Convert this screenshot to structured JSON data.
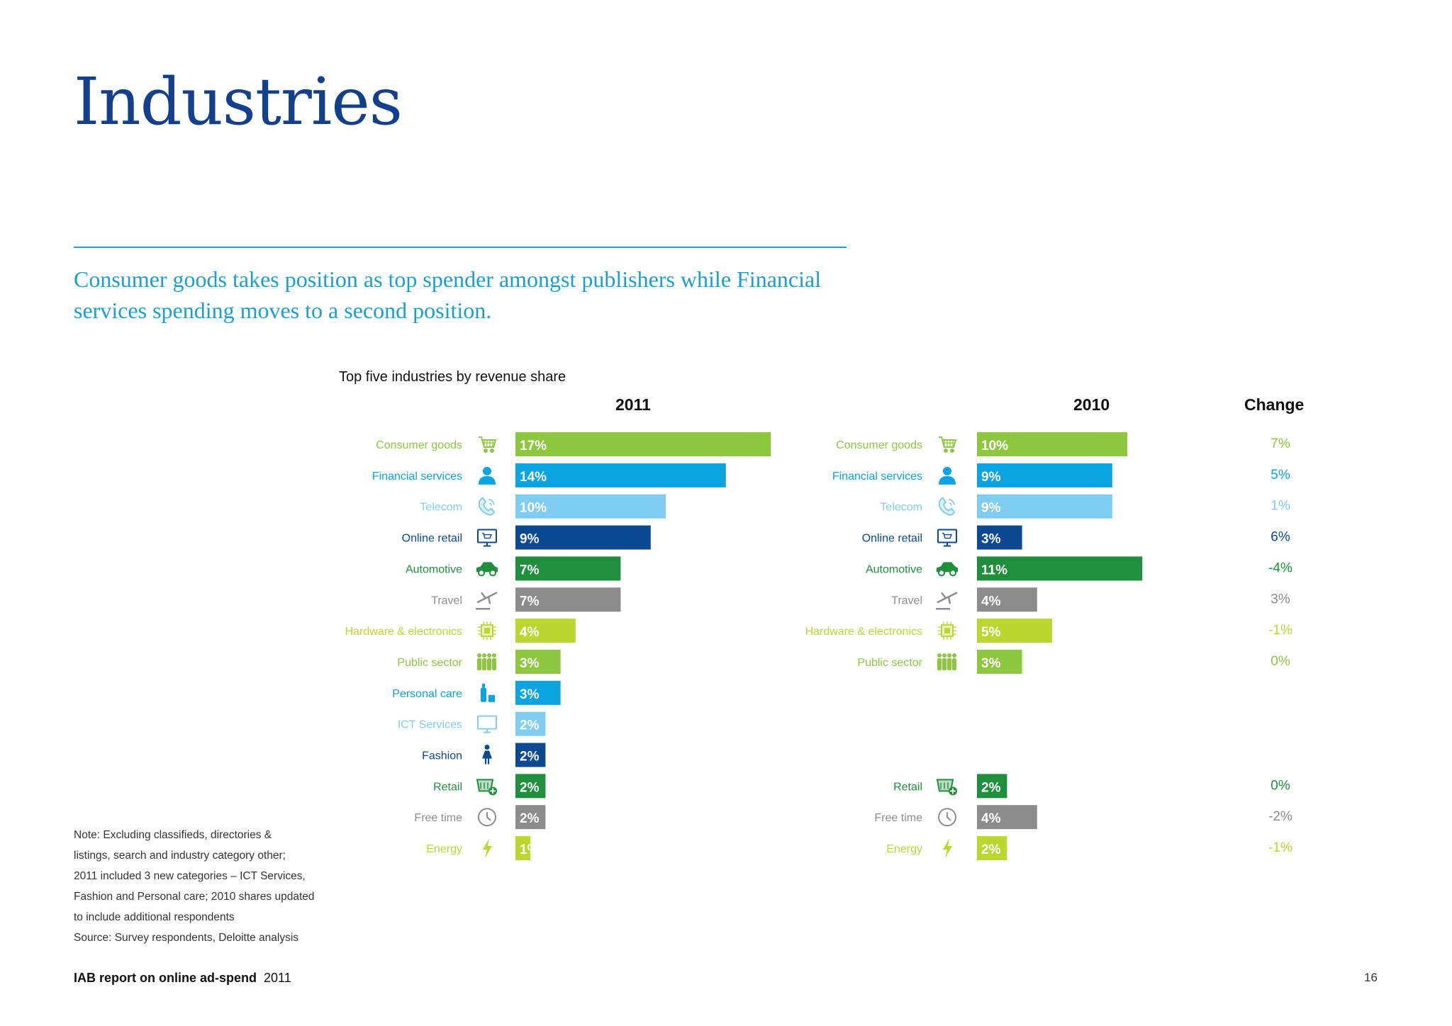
{
  "page": {
    "title": "Industries",
    "subtitle": "Consumer goods takes position as top spender amongst publishers while Financial services spending moves to a second position.",
    "footer_report": "IAB report on online ad-spend",
    "footer_year": "2011",
    "page_number": "16",
    "note_lines": [
      "Note: Excluding classifieds, directories &",
      "listings, search and industry category other;",
      "2011 included 3 new categories – ICT Services,",
      "Fashion and Personal care; 2010 shares updated",
      "to include additional respondents",
      "Source: Survey respondents, Deloitte analysis"
    ],
    "colors": {
      "title": "#13408c",
      "subtitle": "#1a9fd3"
    }
  },
  "chart_data": {
    "type": "bar",
    "orientation": "horizontal",
    "title": "Top five industries by revenue share",
    "column_headers": {
      "left": "2011",
      "right": "2010",
      "change": "Change"
    },
    "series": [
      {
        "name": "2011",
        "unit": "%"
      },
      {
        "name": "2010",
        "unit": "%"
      }
    ],
    "categories": [
      {
        "name": "Consumer goods",
        "icon": "cart-icon",
        "color": "#8dc63f",
        "v2011": 17,
        "v2010": 10,
        "change": "7%"
      },
      {
        "name": "Financial services",
        "icon": "person-icon",
        "color": "#0aa4e0",
        "v2011": 14,
        "v2010": 9,
        "change": "5%"
      },
      {
        "name": "Telecom",
        "icon": "phone-icon",
        "color": "#7fcdf0",
        "v2011": 10,
        "v2010": 9,
        "change": "1%"
      },
      {
        "name": "Online retail",
        "icon": "monitor-cart-icon",
        "color": "#0b4a92",
        "v2011": 9,
        "v2010": 3,
        "change": "6%"
      },
      {
        "name": "Automotive",
        "icon": "car-icon",
        "color": "#1f8f3e",
        "v2011": 7,
        "v2010": 11,
        "change": "-4%"
      },
      {
        "name": "Travel",
        "icon": "plane-icon",
        "color": "#8c8c8c",
        "v2011": 7,
        "v2010": 4,
        "change": "3%"
      },
      {
        "name": "Hardware & electronics",
        "icon": "chip-icon",
        "color": "#bcd630",
        "v2011": 4,
        "v2010": 5,
        "change": "-1%"
      },
      {
        "name": "Public sector",
        "icon": "people-icon",
        "color": "#8dc63f",
        "v2011": 3,
        "v2010": 3,
        "change": "0%"
      },
      {
        "name": "Personal care",
        "icon": "bottle-icon",
        "color": "#0aa4e0",
        "v2011": 3,
        "v2010": null,
        "change": null
      },
      {
        "name": "ICT Services",
        "icon": "screen-icon",
        "color": "#7fcdf0",
        "v2011": 2,
        "v2010": null,
        "change": null
      },
      {
        "name": "Fashion",
        "icon": "woman-icon",
        "color": "#0b4a92",
        "v2011": 2,
        "v2010": null,
        "change": null
      },
      {
        "name": "Retail",
        "icon": "shop-basket-icon",
        "color": "#1f8f3e",
        "v2011": 2,
        "v2010": 2,
        "change": "0%"
      },
      {
        "name": "Free time",
        "icon": "clock-icon",
        "color": "#8c8c8c",
        "v2011": 2,
        "v2010": 4,
        "change": "-2%"
      },
      {
        "name": "Energy",
        "icon": "lightning-icon",
        "color": "#bcd630",
        "v2011": 1,
        "v2010": 2,
        "change": "-1%"
      }
    ]
  }
}
